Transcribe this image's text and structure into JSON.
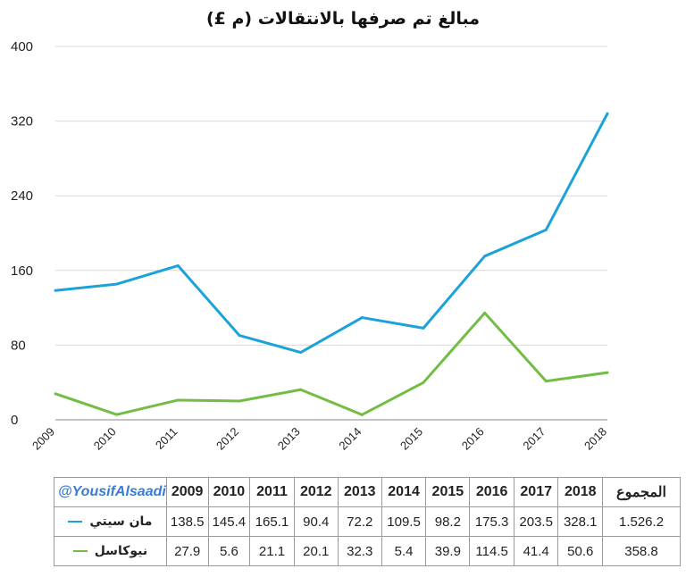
{
  "chart_data": {
    "type": "line",
    "title": "مبالغ تم صرفها بالانتقالات (م £)",
    "x": [
      "2009",
      "2010",
      "2011",
      "2012",
      "2013",
      "2014",
      "2015",
      "2016",
      "2017",
      "2018"
    ],
    "ylim": [
      0,
      400
    ],
    "yticks": [
      0,
      80,
      160,
      240,
      320,
      400
    ],
    "grid": true,
    "series": [
      {
        "name": "مان سيتي",
        "color": "#1ba3d9",
        "values": [
          138.5,
          145.4,
          165.1,
          90.4,
          72.2,
          109.5,
          98.2,
          175.3,
          203.5,
          328.1
        ],
        "total": "1.526.2"
      },
      {
        "name": "نيوكاسل",
        "color": "#73bd44",
        "values": [
          27.9,
          5.6,
          21.1,
          20.1,
          32.3,
          5.4,
          39.9,
          114.5,
          41.4,
          50.6
        ],
        "total": "358.8"
      }
    ]
  },
  "table": {
    "credit": "@YousifAlsaadi",
    "total_header": "المجموع"
  }
}
